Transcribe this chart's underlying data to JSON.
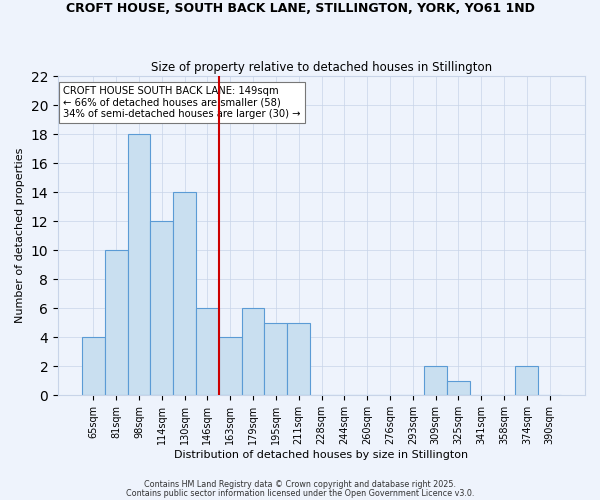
{
  "title": "CROFT HOUSE, SOUTH BACK LANE, STILLINGTON, YORK, YO61 1ND",
  "subtitle": "Size of property relative to detached houses in Stillington",
  "xlabel": "Distribution of detached houses by size in Stillington",
  "ylabel": "Number of detached properties",
  "bar_labels": [
    "65sqm",
    "81sqm",
    "98sqm",
    "114sqm",
    "130sqm",
    "146sqm",
    "163sqm",
    "179sqm",
    "195sqm",
    "211sqm",
    "228sqm",
    "244sqm",
    "260sqm",
    "276sqm",
    "293sqm",
    "309sqm",
    "325sqm",
    "341sqm",
    "358sqm",
    "374sqm",
    "390sqm"
  ],
  "bar_heights": [
    4,
    10,
    18,
    12,
    14,
    6,
    4,
    6,
    5,
    5,
    0,
    0,
    0,
    0,
    0,
    2,
    1,
    0,
    0,
    2,
    0
  ],
  "bar_color": "#c9dff0",
  "bar_edge_color": "#5b9bd5",
  "vline_x": 5.5,
  "vline_color": "#cc0000",
  "ylim": [
    0,
    22
  ],
  "yticks": [
    0,
    2,
    4,
    6,
    8,
    10,
    12,
    14,
    16,
    18,
    20,
    22
  ],
  "annotation_text": "CROFT HOUSE SOUTH BACK LANE: 149sqm\n← 66% of detached houses are smaller (58)\n34% of semi-detached houses are larger (30) →",
  "annotation_box_color": "#ffffff",
  "annotation_box_edge": "#777777",
  "bg_color": "#eef3fc",
  "grid_color": "#c8d4e8",
  "footnote1": "Contains HM Land Registry data © Crown copyright and database right 2025.",
  "footnote2": "Contains public sector information licensed under the Open Government Licence v3.0."
}
